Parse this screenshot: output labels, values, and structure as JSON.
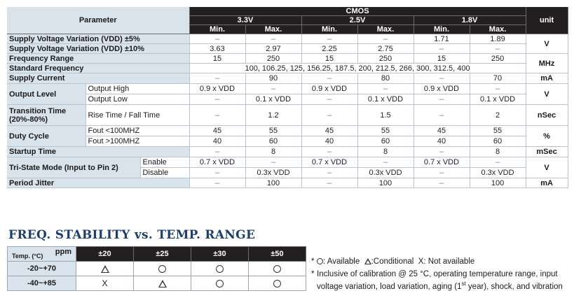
{
  "spec": {
    "header": {
      "parameter": "Parameter",
      "cmos": "CMOS",
      "unit": "unit",
      "voltages": [
        "3.3V",
        "2.5V",
        "1.8V"
      ],
      "min": "Min.",
      "max": "Max."
    },
    "rows": {
      "sv5": {
        "label": "Supply Voltage Variation (VDD) ±5%",
        "values": [
          "–",
          "–",
          "–",
          "–",
          "1.71",
          "1.89"
        ]
      },
      "sv10": {
        "label": "Supply Voltage Variation (VDD) ±10%",
        "values": [
          "3.63",
          "2.97",
          "2.25",
          "2.75",
          "–",
          "–"
        ],
        "unit": "V"
      },
      "freq": {
        "label": "Frequency Range",
        "values": [
          "15",
          "250",
          "15",
          "250",
          "15",
          "250"
        ],
        "unit": "MHz"
      },
      "stdfreq": {
        "label": "Standard Frequency",
        "value": "100, 106.25, 125, 156.25, 187.5, 200, 212.5, 266, 300, 312.5, 400"
      },
      "current": {
        "label": "Supply Current",
        "values": [
          "–",
          "90",
          "–",
          "80",
          "–",
          "70"
        ],
        "unit": "mA"
      },
      "outlevel": {
        "label": "Output Level",
        "unit": "V",
        "high": {
          "label": "Output High",
          "values": [
            "0.9 x VDD",
            "–",
            "0.9 x VDD",
            "–",
            "0.9 x VDD",
            "–"
          ]
        },
        "low": {
          "label": "Output Low",
          "values": [
            "–",
            "0.1 x VDD",
            "–",
            "0.1 x VDD",
            "–",
            "0.1 x VDD"
          ]
        }
      },
      "transition": {
        "label": "Transition Time",
        "label2": "(20%-80%)",
        "sub": "Rise Time / Fall Time",
        "values": [
          "–",
          "1.2",
          "–",
          "1.5",
          "–",
          "2"
        ],
        "unit": "nSec"
      },
      "duty": {
        "label": "Duty Cycle",
        "unit": "%",
        "a": {
          "label": "Fout <100MHZ",
          "values": [
            "45",
            "55",
            "45",
            "55",
            "45",
            "55"
          ]
        },
        "b": {
          "label": "Fout >100MHZ",
          "values": [
            "40",
            "60",
            "40",
            "60",
            "40",
            "60"
          ]
        }
      },
      "startup": {
        "label": "Startup Time",
        "values": [
          "–",
          "8",
          "–",
          "8",
          "–",
          "8"
        ],
        "unit": "mSec"
      },
      "tristate": {
        "label": "Tri-State Mode (Input to Pin 2)",
        "unit": "V",
        "enable": {
          "label": "Enable",
          "values": [
            "0.7 x VDD",
            "–",
            "0.7 x VDD",
            "–",
            "0.7 x VDD",
            "–"
          ]
        },
        "disable": {
          "label": "Disable",
          "values": [
            "–",
            "0.3x VDD",
            "–",
            "0.3x VDD",
            "–",
            "0.3x VDD"
          ]
        }
      },
      "jitter": {
        "label": "Period Jitter",
        "values": [
          "–",
          "100",
          "–",
          "100",
          "–",
          "100"
        ],
        "unit": "mA"
      }
    }
  },
  "stability": {
    "title": "FREQ. STABILITY vs. TEMP. RANGE",
    "ppm_label": "ppm",
    "temp_label": "Temp. (°C)",
    "columns": [
      "±20",
      "±25",
      "±30",
      "±50"
    ],
    "rows": [
      {
        "range": "-20~+70",
        "cells": [
          "triangle-icon",
          "circle-icon",
          "circle-icon",
          "circle-icon"
        ]
      },
      {
        "range": "-40~+85",
        "cells": [
          "X",
          "triangle-icon",
          "circle-icon",
          "circle-icon"
        ]
      }
    ]
  },
  "notes": {
    "star": "*",
    "available": ": Available",
    "conditional": ":Conditional",
    "not_available": "X: Not available",
    "calibration_a": "Inclusive of calibration @ 25 °C, operating temperature range, input voltage variation, load variation, aging (1",
    "calibration_sup": "st",
    "calibration_b": " year), shock, and vibration"
  }
}
